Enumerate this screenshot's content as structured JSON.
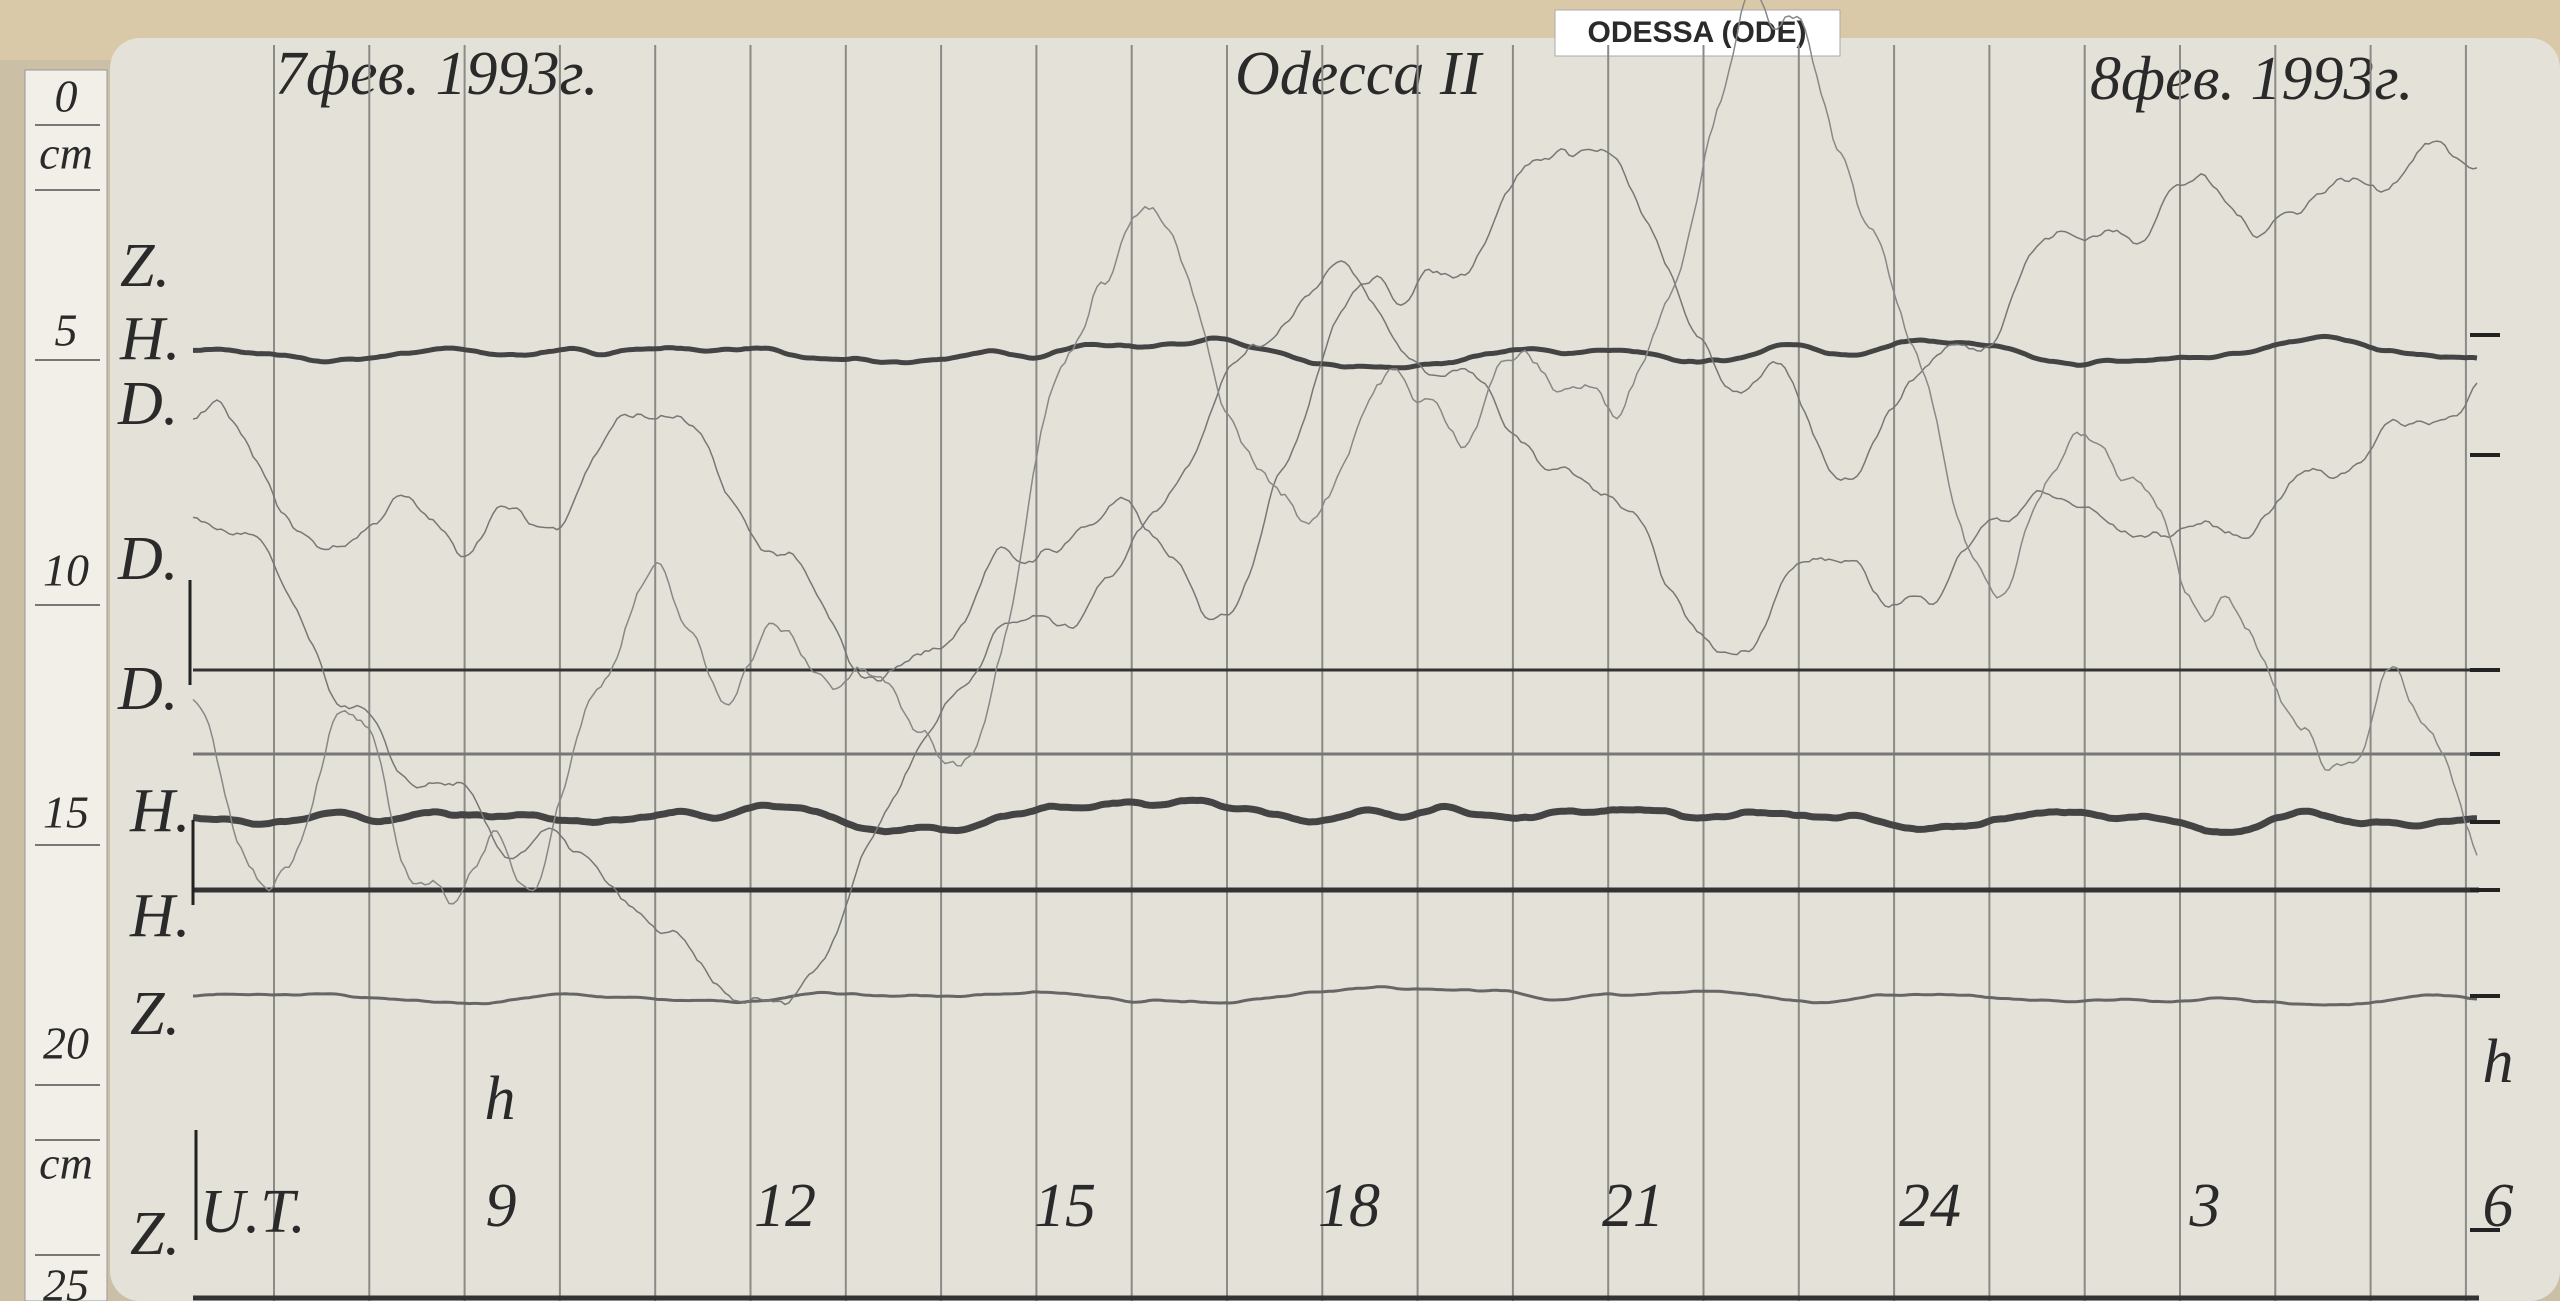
{
  "header": {
    "label": "ODESSA (ODE)"
  },
  "sheet": {
    "date_left": "7фeв. 1993г.",
    "station": "Odecca II",
    "date_right": "8фeв. 1993г."
  },
  "ruler": {
    "labels": [
      "0",
      "cm",
      "5",
      "10",
      "15",
      "20",
      "cm",
      "25"
    ]
  },
  "traces": {
    "labels": [
      "Z.",
      "H.",
      "D.",
      "D.",
      "D.",
      "H.",
      "H.",
      "Z.",
      "Z."
    ]
  },
  "time_axis": {
    "unit": "U.T.",
    "hours": [
      "9",
      "12",
      "15",
      "18",
      "21",
      "24",
      "3",
      "6"
    ],
    "marks": [
      "h",
      "h"
    ]
  }
}
